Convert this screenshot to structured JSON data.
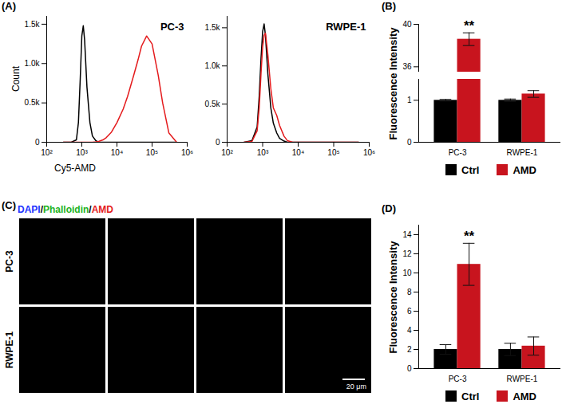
{
  "chart_data": [
    {
      "type": "line",
      "panel": "(A)",
      "title": "PC-3",
      "xlabel": "Cy5-AMD",
      "ylabel": "Count",
      "log": "x",
      "x": [
        300,
        500,
        700,
        800,
        900,
        1000,
        1100,
        1200,
        1400,
        1700,
        2000,
        2500,
        3000,
        4000,
        5000,
        7000,
        10000,
        15000,
        20000,
        30000,
        40000,
        50000,
        70000,
        100000,
        150000,
        200000,
        300000,
        500000
      ],
      "series": [
        {
          "color": "#000000",
          "values": [
            0,
            0,
            30,
            250,
            800,
            1350,
            1480,
            1300,
            700,
            250,
            80,
            20,
            0,
            0,
            0,
            0,
            0,
            0,
            0,
            0,
            0,
            0,
            0,
            0,
            0,
            0,
            0,
            0
          ]
        },
        {
          "color": "#e41a1c",
          "values": [
            0,
            0,
            0,
            0,
            0,
            0,
            0,
            0,
            0,
            0,
            0,
            5,
            10,
            30,
            60,
            130,
            250,
            420,
            580,
            850,
            1050,
            1220,
            1350,
            1250,
            850,
            500,
            120,
            0
          ]
        }
      ],
      "xlim": [
        100,
        1000000
      ],
      "xticks": [
        {
          "value": 100,
          "label": "10²"
        },
        {
          "value": 1000,
          "label": "10³"
        },
        {
          "value": 10000,
          "label": "10⁴"
        },
        {
          "value": 100000,
          "label": "10⁵"
        },
        {
          "value": 1000000,
          "label": "10⁶"
        }
      ],
      "ylim": [
        0,
        1600
      ],
      "yticks": [
        0,
        {
          "value": 500,
          "label": "0.5k"
        },
        {
          "value": 1000,
          "label": "1.0k"
        },
        {
          "value": 1500,
          "label": "1.5k"
        }
      ]
    },
    {
      "type": "line",
      "title": "RWPE-1",
      "log": "x",
      "x": [
        300,
        500,
        700,
        800,
        900,
        1000,
        1100,
        1200,
        1400,
        1700,
        2000,
        2500,
        3000,
        4000,
        5000,
        7000,
        10000,
        15000,
        20000,
        30000,
        40000,
        50000,
        70000,
        100000,
        150000,
        200000,
        300000,
        500000
      ],
      "series": [
        {
          "color": "#000000",
          "values": [
            0,
            20,
            200,
            600,
            1100,
            1450,
            1550,
            1400,
            900,
            450,
            250,
            120,
            50,
            15,
            0,
            0,
            0,
            0,
            0,
            0,
            0,
            0,
            0,
            0,
            0,
            0,
            0,
            0
          ]
        },
        {
          "color": "#e41a1c",
          "values": [
            0,
            10,
            150,
            450,
            900,
            1250,
            1400,
            1430,
            1150,
            700,
            450,
            350,
            220,
            80,
            20,
            0,
            0,
            0,
            0,
            0,
            0,
            0,
            0,
            0,
            0,
            0,
            0,
            0
          ]
        }
      ],
      "xlim": [
        100,
        1000000
      ],
      "xticks": [
        {
          "value": 100,
          "label": "10²"
        },
        {
          "value": 1000,
          "label": "10³"
        },
        {
          "value": 10000,
          "label": "10⁴"
        },
        {
          "value": 100000,
          "label": "10⁵"
        },
        {
          "value": 1000000,
          "label": "10⁶"
        }
      ],
      "ylim": [
        0,
        1650
      ],
      "yticks": [
        0,
        {
          "value": 500,
          "label": "0.5k"
        },
        {
          "value": 1000,
          "label": "1.0k"
        },
        {
          "value": 1500,
          "label": "1.5k"
        }
      ]
    },
    {
      "type": "bar",
      "panel": "(B)",
      "ylabel": "Fluorescence Intensity",
      "categories": [
        "PC-3",
        "RWPE-1"
      ],
      "series": [
        {
          "name": "Ctrl",
          "color": "#000000",
          "values": [
            1,
            1
          ],
          "errors": [
            0.02,
            0.03
          ]
        },
        {
          "name": "AMD",
          "color": "#c8141e",
          "values": [
            38.6,
            1.15
          ],
          "errors": [
            0.6,
            0.08
          ]
        }
      ],
      "ylim": [
        0,
        40
      ],
      "yticks": [
        0,
        1,
        36,
        40
      ],
      "legend": "bottom",
      "annotations": [
        {
          "text": "**",
          "category": "PC-3",
          "series": "AMD"
        }
      ]
    },
    {
      "type": "image_grid",
      "panel": "(C)",
      "channels": [
        {
          "name": "DAPI",
          "color": "#2233ff"
        },
        {
          "name": "Phalloidin",
          "color": "#22b322"
        },
        {
          "name": "AMD",
          "color": "#e41a1c"
        }
      ],
      "separator": "/",
      "rows": [
        "PC-3",
        "RWPE-1"
      ],
      "scale_bar": "20 μm"
    },
    {
      "type": "bar",
      "panel": "(D)",
      "ylabel": "Fluorescence Intensity",
      "categories": [
        "PC-3",
        "RWPE-1"
      ],
      "series": [
        {
          "name": "Ctrl",
          "color": "#000000",
          "values": [
            2,
            2
          ],
          "errors": [
            0.5,
            0.65
          ]
        },
        {
          "name": "AMD",
          "color": "#c8141e",
          "values": [
            10.9,
            2.35
          ],
          "errors": [
            2.2,
            0.95
          ]
        }
      ],
      "ylim": [
        0,
        15
      ],
      "yticks": [
        0,
        2,
        4,
        6,
        8,
        10,
        12,
        14
      ],
      "legend": "bottom",
      "annotations": [
        {
          "text": "**",
          "category": "PC-3",
          "series": "AMD"
        }
      ]
    }
  ]
}
